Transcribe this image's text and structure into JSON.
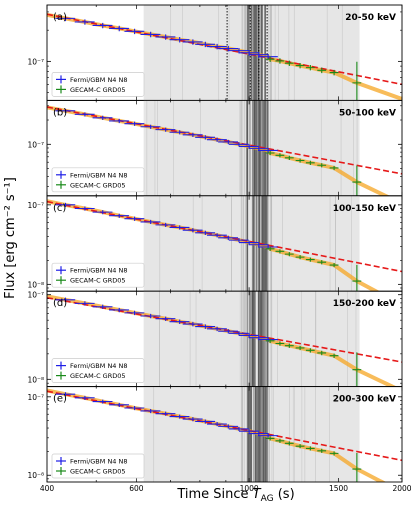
{
  "chart_data": [
    {
      "type": "scatter",
      "panel_label": "(a)",
      "band": "20-50 keV",
      "x_scale": "log",
      "y_scale": "log",
      "xlim": [
        400,
        2000
      ],
      "ylim": [
        4.2e-08,
        3.5e-07
      ],
      "y_ticks": [
        {
          "value": 1e-07,
          "label": "10⁻⁷"
        }
      ],
      "shaded_interval": [
        620,
        1650
      ],
      "dotted_lines": [
        905,
        1005,
        1045,
        1085
      ],
      "legend": [
        "Fermi/GBM N4 N8",
        "GECAM-C GRD05"
      ],
      "fit_line": {
        "x": [
          400,
          2000
        ],
        "y": [
          2.85e-07,
          6e-08
        ]
      },
      "series": [
        {
          "name": "Fermi/GBM N4 N8",
          "x": [
            435,
            475,
            515,
            555,
            595,
            640,
            685,
            730,
            775,
            820,
            865,
            910,
            955,
            1000,
            1045,
            1090
          ],
          "y": [
            2.6e-07,
            2.4e-07,
            2.22e-07,
            2.08e-07,
            1.95e-07,
            1.82e-07,
            1.72e-07,
            1.62e-07,
            1.54e-07,
            1.46e-07,
            1.39e-07,
            1.33e-07,
            1.27e-07,
            1.21e-07,
            1.16e-07,
            1.11e-07
          ]
        },
        {
          "name": "GECAM-C GRD05",
          "x": [
            1100,
            1150,
            1200,
            1260,
            1320,
            1390,
            1470,
            1630
          ],
          "y": [
            1.05e-07,
            1.01e-07,
            9.6e-08,
            9.1e-08,
            8.7e-08,
            8.2e-08,
            7.8e-08,
            6.2e-08
          ]
        }
      ]
    },
    {
      "type": "scatter",
      "panel_label": "(b)",
      "band": "50-100 keV",
      "x_scale": "log",
      "y_scale": "log",
      "xlim": [
        400,
        2000
      ],
      "ylim": [
        2.3e-08,
        3.5e-07
      ],
      "y_ticks": [
        {
          "value": 1e-07,
          "label": "10⁻⁷"
        }
      ],
      "shaded_interval": [
        620,
        1650
      ],
      "legend": [
        "Fermi/GBM N4 N8",
        "GECAM-C GRD05"
      ],
      "fit_line": {
        "x": [
          400,
          2000
        ],
        "y": [
          2.9e-07,
          4.3e-08
        ]
      },
      "series": [
        {
          "name": "Fermi/GBM N4 N8",
          "x": [
            435,
            475,
            515,
            555,
            595,
            640,
            685,
            730,
            775,
            820,
            865,
            910,
            955,
            1000,
            1045,
            1090
          ],
          "y": [
            2.6e-07,
            2.35e-07,
            2.13e-07,
            1.95e-07,
            1.8e-07,
            1.65e-07,
            1.52e-07,
            1.41e-07,
            1.31e-07,
            1.22e-07,
            1.14e-07,
            1.07e-07,
            1e-07,
            9.4e-08,
            8.9e-08,
            8.4e-08
          ]
        },
        {
          "name": "GECAM-C GRD05",
          "x": [
            1100,
            1150,
            1200,
            1260,
            1320,
            1390,
            1470,
            1630
          ],
          "y": [
            7.8e-08,
            7.3e-08,
            6.8e-08,
            6.3e-08,
            5.9e-08,
            5.5e-08,
            5.1e-08,
            3.4e-08
          ]
        }
      ]
    },
    {
      "type": "scatter",
      "panel_label": "(c)",
      "band": "100-150 keV",
      "x_scale": "log",
      "y_scale": "log",
      "xlim": [
        400,
        2000
      ],
      "ylim": [
        8.2e-09,
        1.3e-07
      ],
      "y_ticks": [
        {
          "value": 1e-07,
          "label": "10⁻⁷"
        },
        {
          "value": 1e-08,
          "label": "10⁻⁸"
        }
      ],
      "shaded_interval": [
        620,
        1650
      ],
      "legend": [
        "Fermi/GBM N4 N8",
        "GECAM-C GRD05"
      ],
      "fit_line": {
        "x": [
          400,
          2000
        ],
        "y": [
          1.1e-07,
          1.45e-08
        ]
      },
      "series": [
        {
          "name": "Fermi/GBM N4 N8",
          "x": [
            435,
            475,
            515,
            555,
            595,
            640,
            685,
            730,
            775,
            820,
            865,
            910,
            955,
            1000,
            1045,
            1090
          ],
          "y": [
            1e-07,
            9e-08,
            8.1e-08,
            7.3e-08,
            6.7e-08,
            6.1e-08,
            5.6e-08,
            5.2e-08,
            4.8e-08,
            4.45e-08,
            4.15e-08,
            3.85e-08,
            3.6e-08,
            3.35e-08,
            3.15e-08,
            2.95e-08
          ]
        },
        {
          "name": "GECAM-C GRD05",
          "x": [
            1100,
            1150,
            1200,
            1260,
            1320,
            1390,
            1470,
            1630
          ],
          "y": [
            2.8e-08,
            2.6e-08,
            2.4e-08,
            2.2e-08,
            2.05e-08,
            1.9e-08,
            1.75e-08,
            1.1e-08
          ]
        }
      ]
    },
    {
      "type": "scatter",
      "panel_label": "(d)",
      "band": "150-200 keV",
      "x_scale": "log",
      "y_scale": "log",
      "xlim": [
        400,
        2000
      ],
      "ylim": [
        8.2e-09,
        1.1e-07
      ],
      "y_ticks": [
        {
          "value": 1e-07,
          "label": "10⁻⁷"
        },
        {
          "value": 1e-08,
          "label": "10⁻⁸"
        }
      ],
      "shaded_interval": [
        620,
        1650
      ],
      "legend": [
        "Fermi/GBM N4 N8",
        "GECAM-C GRD05"
      ],
      "fit_line": {
        "x": [
          400,
          2000
        ],
        "y": [
          9.2e-08,
          1.6e-08
        ]
      },
      "series": [
        {
          "name": "Fermi/GBM N4 N8",
          "x": [
            435,
            475,
            515,
            555,
            595,
            640,
            685,
            730,
            775,
            820,
            865,
            910,
            955,
            1000,
            1045,
            1090
          ],
          "y": [
            8.7e-08,
            7.9e-08,
            7.2e-08,
            6.6e-08,
            6.1e-08,
            5.6e-08,
            5.2e-08,
            4.8e-08,
            4.5e-08,
            4.2e-08,
            3.95e-08,
            3.7e-08,
            3.5e-08,
            3.3e-08,
            3.1e-08,
            2.95e-08
          ]
        },
        {
          "name": "GECAM-C GRD05",
          "x": [
            1100,
            1150,
            1200,
            1260,
            1320,
            1390,
            1470,
            1630
          ],
          "y": [
            2.85e-08,
            2.65e-08,
            2.5e-08,
            2.35e-08,
            2.2e-08,
            2.05e-08,
            1.9e-08,
            1.3e-08
          ]
        }
      ]
    },
    {
      "type": "scatter",
      "panel_label": "(e)",
      "band": "200-300 keV",
      "x_scale": "log",
      "y_scale": "log",
      "xlim": [
        400,
        2000
      ],
      "ylim": [
        8.2e-09,
        1.35e-07
      ],
      "y_ticks": [
        {
          "value": 1e-07,
          "label": "10⁻⁷"
        },
        {
          "value": 1e-08,
          "label": "10⁻⁸"
        }
      ],
      "x_ticks": [
        {
          "value": 400,
          "label": "400"
        },
        {
          "value": 600,
          "label": "600"
        },
        {
          "value": 1000,
          "label": "1000"
        },
        {
          "value": 1500,
          "label": "1500"
        },
        {
          "value": 2000,
          "label": "2000"
        }
      ],
      "shaded_interval": [
        620,
        1650
      ],
      "legend": [
        "Fermi/GBM N4 N8",
        "GECAM-C GRD05"
      ],
      "fit_line": {
        "x": [
          400,
          2000
        ],
        "y": [
          1.18e-07,
          1.55e-08
        ]
      },
      "series": [
        {
          "name": "Fermi/GBM N4 N8",
          "x": [
            435,
            475,
            515,
            555,
            595,
            640,
            685,
            730,
            775,
            820,
            865,
            910,
            955,
            1000,
            1045,
            1090
          ],
          "y": [
            1.08e-07,
            9.7e-08,
            8.7e-08,
            7.9e-08,
            7.2e-08,
            6.6e-08,
            6.1e-08,
            5.6e-08,
            5.2e-08,
            4.85e-08,
            4.5e-08,
            4.2e-08,
            3.9e-08,
            3.65e-08,
            3.4e-08,
            3.2e-08
          ]
        },
        {
          "name": "GECAM-C GRD05",
          "x": [
            1100,
            1150,
            1200,
            1260,
            1320,
            1390,
            1470,
            1630
          ],
          "y": [
            2.95e-08,
            2.75e-08,
            2.55e-08,
            2.35e-08,
            2.2e-08,
            2.05e-08,
            1.9e-08,
            1.2e-08
          ]
        }
      ]
    }
  ],
  "y_axis_label": "Flux [erg cm⁻² s⁻¹]",
  "x_axis_label": "Time Since T_AG (s)",
  "colors": {
    "fermi": "#1f1fe6",
    "gecam": "#1a8a1a",
    "fit": "#e61919",
    "band": "#f5a623",
    "shade": "#e6e6e6"
  }
}
